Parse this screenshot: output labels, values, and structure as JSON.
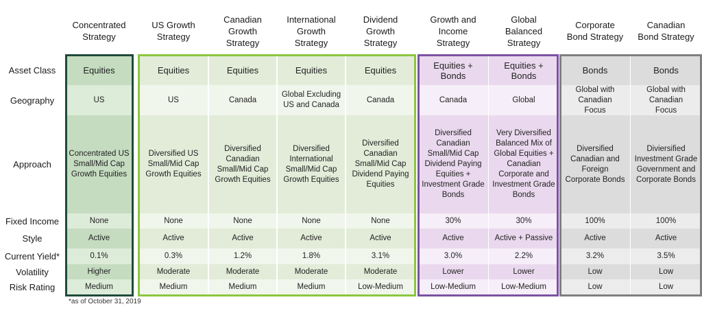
{
  "columns": [
    {
      "header": "Concentrated Strategy"
    },
    {
      "header": "US Growth Strategy"
    },
    {
      "header": "Canadian Growth Strategy"
    },
    {
      "header": "International Growth Strategy"
    },
    {
      "header": "Dividend Growth Strategy"
    },
    {
      "header": "Growth and Income Strategy"
    },
    {
      "header": "Global Balanced Strategy"
    },
    {
      "header": "Corporate Bond Strategy"
    },
    {
      "header": "Canadian Bond Strategy"
    }
  ],
  "header_lines": [
    [
      "Concentrated",
      "Strategy"
    ],
    [
      "US Growth",
      "Strategy"
    ],
    [
      "Canadian",
      "Growth",
      "Strategy"
    ],
    [
      "International",
      "Growth",
      "Strategy"
    ],
    [
      "Dividend",
      "Growth",
      "Strategy"
    ],
    [
      "Growth and",
      "Income",
      "Strategy"
    ],
    [
      "Global",
      "Balanced",
      "Strategy"
    ],
    [
      "Corporate",
      "Bond Strategy"
    ],
    [
      "Canadian",
      "Bond Strategy"
    ]
  ],
  "rows": [
    {
      "label": "Asset Class",
      "cells": [
        "Equities",
        "Equities",
        "Equities",
        "Equities",
        "Equities",
        "Equities + Bonds",
        "Equities + Bonds",
        "Bonds",
        "Bonds"
      ]
    },
    {
      "label": "Geography",
      "cells": [
        "US",
        "US",
        "Canada",
        "Global Excluding US and Canada",
        "Canada",
        "Canada",
        "Global",
        "Global with Canadian Focus",
        "Global with Canadian Focus"
      ]
    },
    {
      "label": "Approach",
      "cells": [
        "Concentrated US Small/Mid Cap Growth Equities",
        "Diversified US Small/Mid Cap Growth Equities",
        "Diversified Canadian Small/Mid Cap Growth Equities",
        "Diversified International Small/Mid Cap Growth Equities",
        "Diversified Canadian Small/Mid Cap Dividend Paying Equities",
        "Diversified Canadian Small/Mid Cap Dividend Paying Equities + Investment Grade Bonds",
        "Very Diversified Balanced Mix of Global Equities + Canadian Corporate and Investment Grade Bonds",
        "Diversified Canadian and Foreign Corporate Bonds",
        "Diviersified Investment Grade Government and Corporate Bonds"
      ]
    },
    {
      "label": "Fixed Income",
      "cells": [
        "None",
        "None",
        "None",
        "None",
        "None",
        "30%",
        "30%",
        "100%",
        "100%"
      ]
    },
    {
      "label": "Style",
      "cells": [
        "Active",
        "Active",
        "Active",
        "Active",
        "Active",
        "Active",
        "Active + Passive",
        "Active",
        "Active"
      ]
    },
    {
      "label": "Current Yield*",
      "cells": [
        "0.1%",
        "0.3%",
        "1.2%",
        "1.8%",
        "3.1%",
        "3.0%",
        "2.2%",
        "3.2%",
        "3.5%"
      ]
    },
    {
      "label": "Volatility",
      "cells": [
        "Higher",
        "Moderate",
        "Moderate",
        "Moderate",
        "Moderate",
        "Lower",
        "Lower",
        "Low",
        "Low"
      ]
    },
    {
      "label": "Risk Rating",
      "cells": [
        "Medium",
        "Medium",
        "Medium",
        "Medium",
        "Low-Medium",
        "Low-Medium",
        "Low-Medium",
        "Low",
        "Low"
      ]
    }
  ],
  "approach_lines": [
    [
      "Concentrated US",
      "Small/Mid Cap",
      "Growth Equities"
    ],
    [
      "Diversified US",
      "Small/Mid Cap",
      "Growth Equities"
    ],
    [
      "Diversified",
      "Canadian",
      "Small/Mid Cap",
      "Growth Equities"
    ],
    [
      "Diversified",
      "International",
      "Small/Mid Cap",
      "Growth Equities"
    ],
    [
      "Diversified",
      "Canadian",
      "Small/Mid Cap",
      "Dividend Paying",
      "Equities"
    ],
    [
      "Diversified",
      "Canadian",
      "Small/Mid Cap",
      "Dividend Paying",
      "Equities +",
      "Investment Grade",
      "Bonds"
    ],
    [
      "Very Diversified",
      "Balanced Mix of",
      "Global Equities +",
      "Canadian",
      "Corporate and",
      "Investment Grade",
      "Bonds"
    ],
    [
      "Diversified",
      "Canadian and",
      "Foreign",
      "Corporate Bonds"
    ],
    [
      "Diviersified",
      "Investment Grade",
      "Government and",
      "Corporate Bonds"
    ]
  ],
  "footnote": "*as of October 31, 2019",
  "colors": {
    "concentrated_dark": "#c5dcc0",
    "concentrated_light": "#ddebd9",
    "concentrated_border": "#1f4a3a",
    "green_dark": "#e2ecd9",
    "green_light": "#f1f6ec",
    "green_border": "#8cc63f",
    "purple_dark": "#ead9ee",
    "purple_light": "#f6eef8",
    "purple_border": "#7b52a3",
    "gray_dark": "#dcdcdc",
    "gray_light": "#ececec",
    "gray_border": "#7f7f7f"
  }
}
